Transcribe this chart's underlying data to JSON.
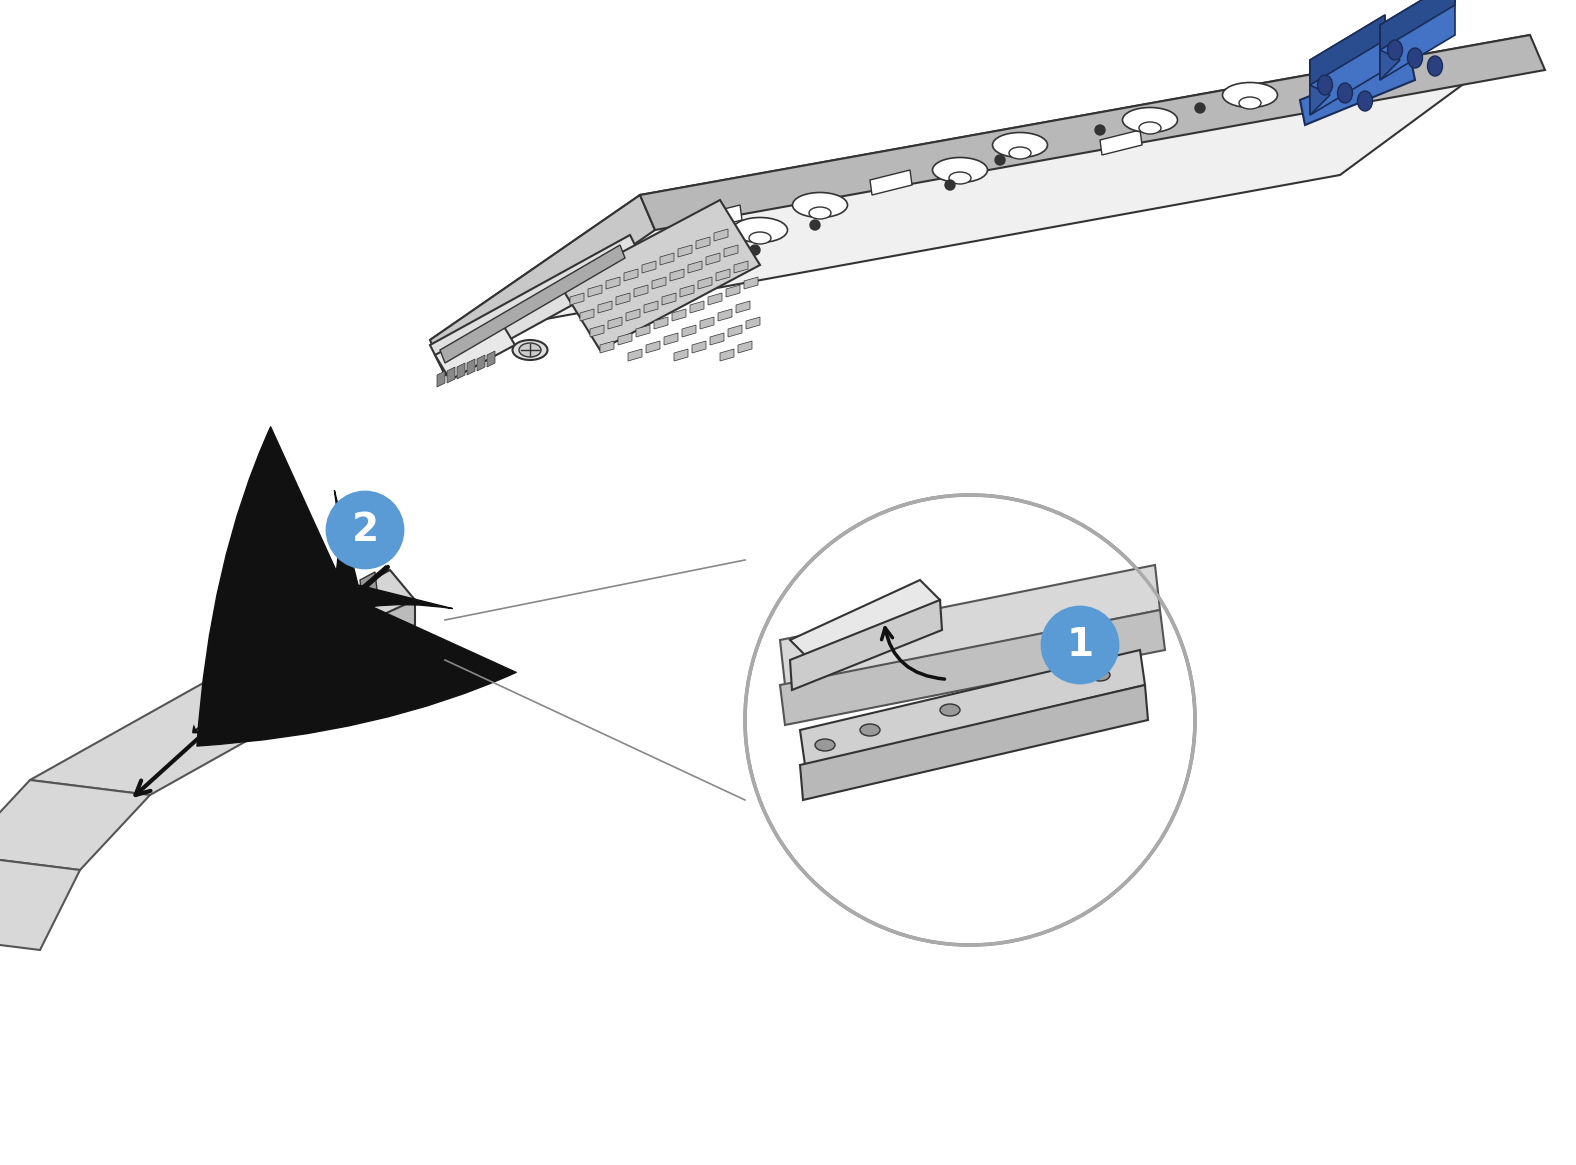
{
  "bg_color": "#ffffff",
  "board_color": "#f0f0f0",
  "board_stroke": "#333333",
  "blue_connector_color": "#4472c4",
  "blue_connector_dark": "#2a4d8f",
  "cable_color": "#d8d8d8",
  "cable_stroke": "#555555",
  "connector_bg": "#e8e8e8",
  "arrow_color": "#111111",
  "step1_label": "1",
  "step2_label": "2",
  "step_circle_color": "#5b9bd5",
  "step_text_color": "#ffffff",
  "figsize": [
    15.76,
    11.65
  ],
  "dpi": 100
}
